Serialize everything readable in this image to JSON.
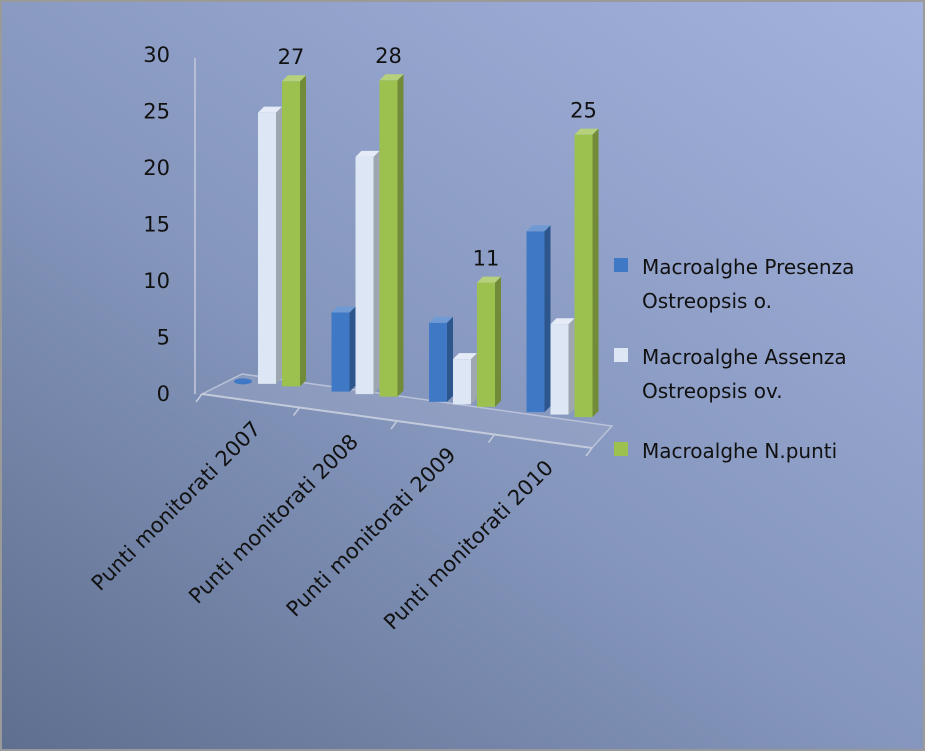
{
  "chart_data": {
    "type": "bar",
    "categories": [
      "Punti monitorati 2007",
      "Punti monitorati 2008",
      "Punti monitorati 2009",
      "Punti monitorati 2010"
    ],
    "series": [
      {
        "name": "Macroalghe Presenza Ostreopsis o.",
        "values": [
          0,
          7,
          7,
          16
        ],
        "color": "#3f78c4"
      },
      {
        "name": "Macroalghe Assenza Ostreopsis ov.",
        "values": [
          24,
          21,
          4,
          8
        ],
        "color": "#dce6f4"
      },
      {
        "name": "Macroalghe N.punti",
        "values": [
          27,
          28,
          11,
          25
        ],
        "color": "#9dc14f"
      }
    ],
    "data_labels": [
      "27",
      "28",
      "11",
      "25"
    ],
    "y_ticks": [
      "0",
      "5",
      "10",
      "15",
      "20",
      "25",
      "30"
    ],
    "ylim": [
      0,
      30
    ],
    "legend_position": "right",
    "legend": [
      {
        "lines": [
          "Macroalghe Presenza",
          "Ostreopsis o."
        ]
      },
      {
        "lines": [
          "Macroalghe Assenza",
          "Ostreopsis ov."
        ]
      },
      {
        "lines": [
          "Macroalghe N.punti"
        ]
      }
    ],
    "grid": false
  }
}
